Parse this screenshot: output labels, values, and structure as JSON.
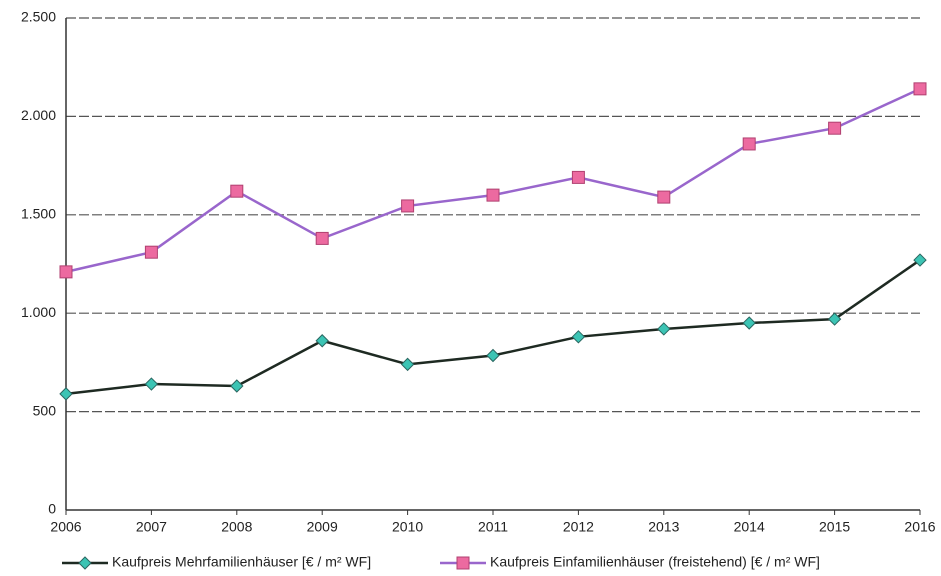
{
  "chart_data": {
    "type": "line",
    "x": [
      2006,
      2007,
      2008,
      2009,
      2010,
      2011,
      2012,
      2013,
      2014,
      2015,
      2016
    ],
    "xlim": [
      2006,
      2016
    ],
    "xticks": [
      2006,
      2007,
      2008,
      2009,
      2010,
      2011,
      2012,
      2013,
      2014,
      2015,
      2016
    ],
    "ylim": [
      0,
      2500
    ],
    "yticks": [
      0,
      500,
      {
        "value": 1000,
        "label": "1.000"
      },
      {
        "value": 1500,
        "label": "1.500"
      },
      {
        "value": 2000,
        "label": "2.000"
      },
      {
        "value": 2500,
        "label": "2.500"
      }
    ],
    "grid": true,
    "legend": "bottom",
    "series": [
      {
        "name": "Kaufpreis Mehrfamilienhäuser [€ / m² WF]",
        "color": "#1e2a22",
        "marker": "diamond",
        "marker_color": "#3cc4b4",
        "values": [
          590,
          640,
          630,
          860,
          740,
          785,
          880,
          920,
          950,
          970,
          1270
        ]
      },
      {
        "name": "Kaufpreis Einfamilienhäuser (freistehend) [€ / m² WF]",
        "color": "#9966cc",
        "marker": "square",
        "marker_color": "#ec6aa0",
        "values": [
          1210,
          1310,
          1620,
          1380,
          1545,
          1600,
          1690,
          1590,
          1860,
          1940,
          2140
        ]
      }
    ]
  }
}
